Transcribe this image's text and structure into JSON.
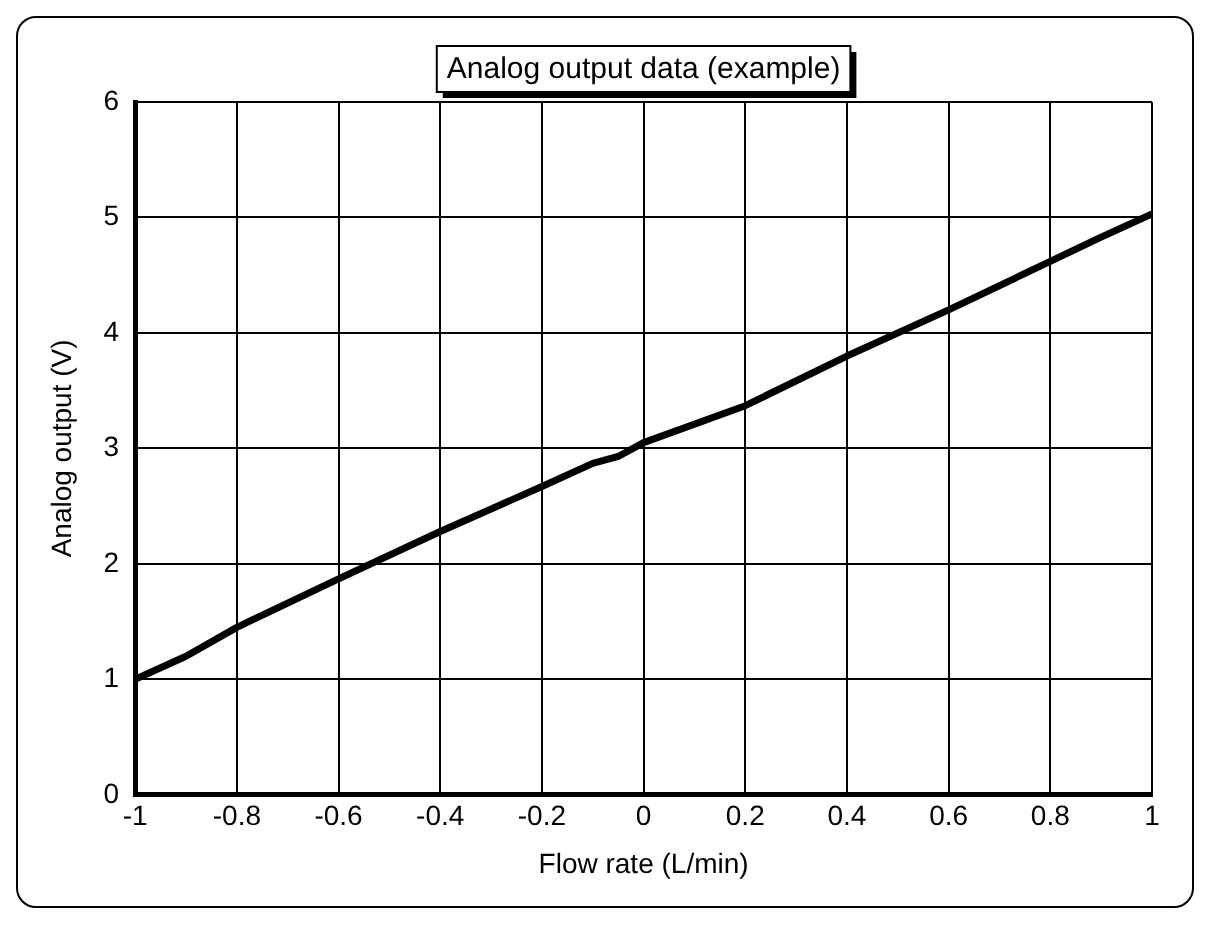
{
  "chart_data": {
    "type": "line",
    "title": "Analog output data (example)",
    "xlabel": "Flow rate (L/min)",
    "ylabel": "Analog output (V)",
    "x": [
      -1,
      -0.9,
      -0.8,
      -0.6,
      -0.4,
      -0.2,
      -0.1,
      -0.05,
      0,
      0.2,
      0.4,
      0.6,
      0.8,
      0.9,
      1
    ],
    "series": [
      {
        "color": "#000000",
        "values": [
          1.0,
          1.2,
          1.45,
          1.87,
          2.28,
          2.67,
          2.87,
          2.93,
          3.05,
          3.37,
          3.8,
          4.2,
          4.62,
          4.83,
          5.03
        ]
      }
    ],
    "xlim": [
      -1,
      1
    ],
    "xticks": [
      -1,
      -0.8,
      -0.6,
      -0.4,
      -0.2,
      0,
      0.2,
      0.4,
      0.6,
      0.8,
      1
    ],
    "ylim": [
      0,
      6
    ],
    "yticks": [
      0,
      1,
      2,
      3,
      4,
      5,
      6
    ],
    "grid": true,
    "legend": false,
    "marker": "none",
    "line_style": "solid"
  }
}
